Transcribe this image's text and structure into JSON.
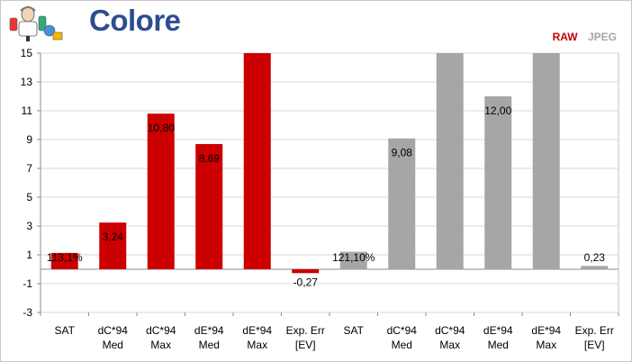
{
  "header": {
    "title": "Colore"
  },
  "colors": {
    "title": "#2b4d91",
    "raw": "#cc0000",
    "jpeg": "#a6a6a6",
    "grid": "#d9d9d9"
  },
  "icons": {
    "logo": "scientist-logo-icon"
  },
  "chart_data": {
    "type": "bar",
    "title": "",
    "xlabel": "",
    "ylabel": "",
    "ylim": [
      -3,
      15
    ],
    "yticks": [
      -3,
      -1,
      1,
      3,
      5,
      7,
      9,
      11,
      13,
      15
    ],
    "grid": true,
    "legend_position": "top-right",
    "legend": [
      "RAW",
      "JPEG"
    ],
    "categories": [
      [
        "SAT",
        ""
      ],
      [
        "dC*94",
        "Med"
      ],
      [
        "dC*94",
        "Max"
      ],
      [
        "dE*94",
        "Med"
      ],
      [
        "dE*94",
        "Max"
      ],
      [
        "Exp. Err",
        "[EV]"
      ],
      [
        "SAT",
        ""
      ],
      [
        "dC*94",
        "Med"
      ],
      [
        "dC*94",
        "Max"
      ],
      [
        "dE*94",
        "Med"
      ],
      [
        "dE*94",
        "Max"
      ],
      [
        "Exp. Err",
        "[EV]"
      ]
    ],
    "bars": [
      {
        "series": "RAW",
        "value": 1.131,
        "label": "113,1%"
      },
      {
        "series": "RAW",
        "value": 3.24,
        "label": "3,24"
      },
      {
        "series": "RAW",
        "value": 10.8,
        "label": "10,80"
      },
      {
        "series": "RAW",
        "value": 8.69,
        "label": "8,69"
      },
      {
        "series": "RAW",
        "value": 15,
        "label": ""
      },
      {
        "series": "RAW",
        "value": -0.27,
        "label": "-0,27"
      },
      {
        "series": "JPEG",
        "value": 1.211,
        "label": "121,10%"
      },
      {
        "series": "JPEG",
        "value": 9.08,
        "label": "9,08"
      },
      {
        "series": "JPEG",
        "value": 15,
        "label": ""
      },
      {
        "series": "JPEG",
        "value": 12.0,
        "label": "12,00"
      },
      {
        "series": "JPEG",
        "value": 15,
        "label": ""
      },
      {
        "series": "JPEG",
        "value": 0.23,
        "label": "0,23"
      }
    ]
  }
}
